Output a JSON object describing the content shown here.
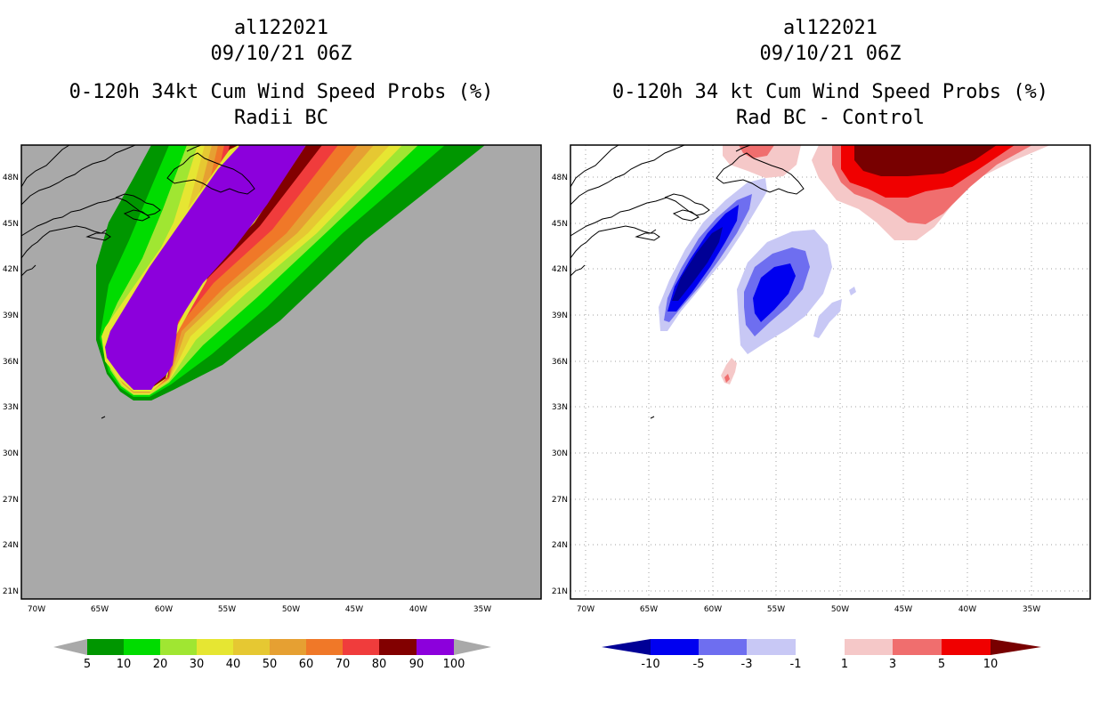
{
  "left_panel": {
    "storm_id": "al122021",
    "datetime": "09/10/21 06Z",
    "product": "0-120h 34kt Cum Wind Speed Probs (%)",
    "variant": "Radii BC",
    "background_color": "#a9a9a9"
  },
  "right_panel": {
    "storm_id": "al122021",
    "datetime": "09/10/21 06Z",
    "product": "0-120h 34 kt Cum Wind Speed Probs (%)",
    "variant": "Rad BC - Control",
    "background_color": "#ffffff"
  },
  "axes": {
    "lat_labels": [
      "48N",
      "45N",
      "42N",
      "39N",
      "36N",
      "33N",
      "30N",
      "27N",
      "24N",
      "21N"
    ],
    "lon_labels": [
      "70W",
      "65W",
      "60W",
      "55W",
      "50W",
      "45W",
      "40W",
      "35W"
    ]
  },
  "left_colorbar": {
    "labels": [
      "5",
      "10",
      "20",
      "30",
      "40",
      "50",
      "60",
      "70",
      "80",
      "90",
      "100"
    ],
    "colors": [
      "#a9a9a9",
      "#009600",
      "#00dc00",
      "#a0e632",
      "#e6e632",
      "#e6c832",
      "#e6a032",
      "#f07828",
      "#f03c3c",
      "#820000",
      "#8c00dc",
      "#a9a9a9"
    ]
  },
  "right_colorbar": {
    "labels": [
      "-10",
      "-5",
      "-3",
      "-1",
      "1",
      "3",
      "5",
      "10"
    ],
    "colors": [
      "#000096",
      "#0000f0",
      "#6e6ef0",
      "#c8c8f5",
      "#ffffff",
      "#f5c8c8",
      "#f06e6e",
      "#f00000",
      "#780000"
    ]
  },
  "icons": [
    "coastline-map-icon"
  ]
}
